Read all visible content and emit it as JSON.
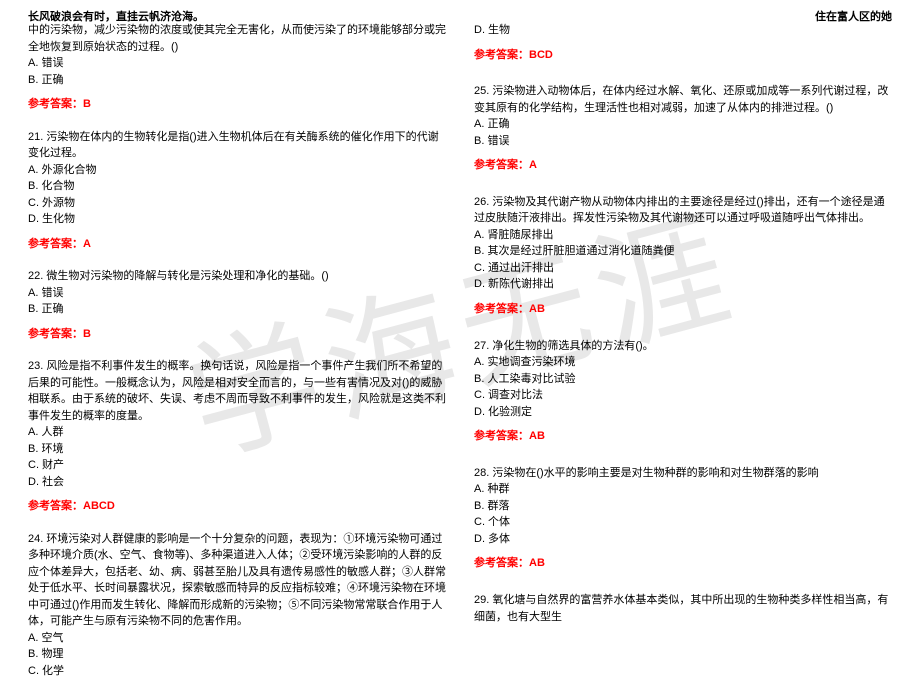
{
  "header": {
    "left": "长风破浪会有时，直挂云帆济沧海。",
    "right": "住在富人区的她"
  },
  "watermark_text": "学海无涯",
  "colors": {
    "text": "#000000",
    "answer": "#ff0000",
    "watermark": "#e8e8e8",
    "background": "#ffffff"
  },
  "left_column": [
    {
      "text": "中的污染物，减少污染物的浓度或使其完全无害化，从而使污染了的环境能够部分或完全地恢复到原始状态的过程。()",
      "options": [
        "A. 错误",
        "B. 正确"
      ],
      "answer": "参考答案：B"
    },
    {
      "text": "21. 污染物在体内的生物转化是指()进入生物机体后在有关酶系统的催化作用下的代谢变化过程。",
      "options": [
        "A. 外源化合物",
        "B. 化合物",
        "C. 外源物",
        "D. 生化物"
      ],
      "answer": "参考答案：A"
    },
    {
      "text": "22. 微生物对污染物的降解与转化是污染处理和净化的基础。()",
      "options": [
        "A. 错误",
        "B. 正确"
      ],
      "answer": "参考答案：B"
    },
    {
      "text": "23. 风险是指不利事件发生的概率。换句话说，风险是指一个事件产生我们所不希望的后果的可能性。一般概念认为，风险是相对安全而言的，与一些有害情况及对()的威胁相联系。由于系统的破坏、失误、考虑不周而导致不利事件的发生，风险就是这类不利事件发生的概率的度量。",
      "options": [
        "A. 人群",
        "B. 环境",
        "C. 财产",
        "D. 社会"
      ],
      "answer": "参考答案：ABCD"
    },
    {
      "text": "24. 环境污染对人群健康的影响是一个十分复杂的问题，表现为：①环境污染物可通过多种环境介质(水、空气、食物等)、多种渠道进入人体；②受环境污染影响的人群的反应个体差异大，包括老、幼、病、弱甚至胎儿及具有遗传易感性的敏感人群；③人群常处于低水平、长时间暴露状况，探索敏感而特异的反应指标较难；④环境污染物在环境中可通过()作用而发生转化、降解而形成新的污染物；⑤不同污染物常常联合作用于人体，可能产生与原有污染物不同的危害作用。",
      "options": [
        "A. 空气",
        "B. 物理",
        "C. 化学"
      ],
      "answer": ""
    }
  ],
  "right_column": [
    {
      "text": "",
      "options": [
        "D. 生物"
      ],
      "answer": "参考答案：BCD"
    },
    {
      "text": "25. 污染物进入动物体后，在体内经过水解、氧化、还原或加成等一系列代谢过程，改变其原有的化学结构，生理活性也相对减弱，加速了从体内的排泄过程。()",
      "options": [
        "A. 正确",
        "B. 错误"
      ],
      "answer": "参考答案：A"
    },
    {
      "text": "26. 污染物及其代谢产物从动物体内排出的主要途径是经过()排出，还有一个途径是通过皮肤随汗液排出。挥发性污染物及其代谢物还可以通过呼吸道随呼出气体排出。",
      "options": [
        "A. 肾脏随尿排出",
        "B. 其次是经过肝脏胆道通过消化道随粪便",
        "C. 通过出汗排出",
        "D. 新陈代谢排出"
      ],
      "answer": "参考答案：AB"
    },
    {
      "text": "27. 净化生物的筛选具体的方法有()。",
      "options": [
        "A. 实地调查污染环境",
        "B. 人工染毒对比试验",
        "C. 调查对比法",
        "D. 化验测定"
      ],
      "answer": "参考答案：AB"
    },
    {
      "text": "28. 污染物在()水平的影响主要是对生物种群的影响和对生物群落的影响",
      "options": [
        "A. 种群",
        "B. 群落",
        "C. 个体",
        "D. 多体"
      ],
      "answer": "参考答案：AB"
    },
    {
      "text": "29. 氧化塘与自然界的富营养水体基本类似，其中所出现的生物种类多样性相当高，有细菌，也有大型生",
      "options": [],
      "answer": ""
    }
  ]
}
